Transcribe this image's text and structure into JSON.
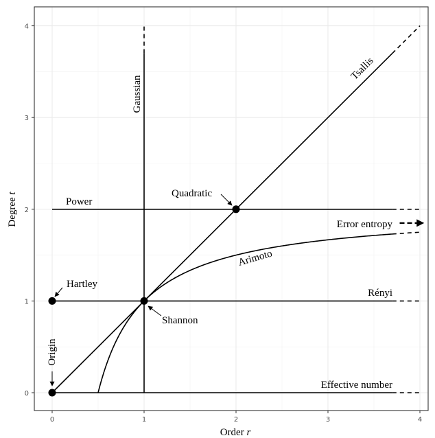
{
  "chart_data": {
    "type": "line",
    "xlabel": "Order",
    "xlabel_symbol": "r",
    "ylabel": "Degree",
    "ylabel_symbol": "t",
    "xlim": [
      -0.2,
      4.15
    ],
    "ylim": [
      -0.2,
      4.2
    ],
    "x_ticks": [
      0,
      1,
      2,
      3,
      4
    ],
    "y_ticks": [
      0,
      1,
      2,
      3,
      4
    ],
    "grid": true,
    "theme": "bw",
    "solid_until": 3.7,
    "lines": [
      {
        "name": "Tsallis",
        "x": [
          0,
          3.7
        ],
        "y": [
          0,
          3.7
        ],
        "extension": [
          [
            3.7,
            3.7
          ],
          [
            4.0,
            4.0
          ]
        ]
      },
      {
        "name": "Gaussian",
        "x": [
          1,
          1
        ],
        "y": [
          0,
          3.7
        ],
        "extension": [
          [
            1,
            3.7
          ],
          [
            1,
            4.0
          ]
        ]
      },
      {
        "name": "Power",
        "x": [
          0,
          3.7
        ],
        "y": [
          2,
          2
        ],
        "extension": [
          [
            3.7,
            2
          ],
          [
            4.0,
            2
          ]
        ]
      },
      {
        "name": "Rényi",
        "x": [
          0,
          3.7
        ],
        "y": [
          1,
          1
        ],
        "extension": [
          [
            3.7,
            1
          ],
          [
            4.0,
            1
          ]
        ]
      },
      {
        "name": "Effective number",
        "x": [
          0,
          3.7
        ],
        "y": [
          0,
          0
        ],
        "extension": [
          [
            3.7,
            0
          ],
          [
            4.0,
            0
          ]
        ]
      },
      {
        "name": "Arimoto",
        "function": "t = 2 - 1/r",
        "x_range": [
          0.5,
          3.7
        ],
        "extension_range": [
          3.7,
          4.0
        ]
      }
    ],
    "points": [
      {
        "name": "Origin",
        "x": 0,
        "y": 0
      },
      {
        "name": "Hartley",
        "x": 0,
        "y": 1
      },
      {
        "name": "Shannon",
        "x": 1,
        "y": 1
      },
      {
        "name": "Quadratic",
        "x": 2,
        "y": 2
      }
    ],
    "annotations": {
      "tsallis": "Tsallis",
      "gaussian": "Gaussian",
      "power": "Power",
      "renyi": "Rényi",
      "effective": "Effective number",
      "arimoto": "Arimoto",
      "error_entropy": "Error entropy",
      "origin": "Origin",
      "hartley": "Hartley",
      "shannon": "Shannon",
      "quadratic": "Quadratic"
    }
  }
}
